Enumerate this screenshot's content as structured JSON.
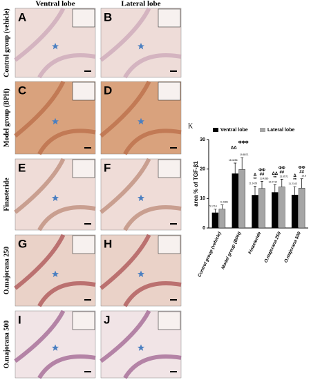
{
  "figure": {
    "columns": [
      "Ventral lobe",
      "Lateral lobe"
    ],
    "rows": [
      "Control group (vehicle)",
      "Model group (BPH)",
      "Finasteride",
      "O.majorana 250",
      "O.majorana 500"
    ],
    "panels": [
      "A",
      "B",
      "C",
      "D",
      "E",
      "F",
      "G",
      "H",
      "I",
      "J"
    ]
  },
  "chart_data": {
    "type": "bar",
    "panel_label": "K",
    "y_label": "area % of TGF-β1",
    "categories": [
      "Control group (vehicle)",
      "Model group (BPH)",
      "Finasteride",
      "O.majorana 250",
      "O.majorana 500"
    ],
    "series": [
      {
        "name": "Ventral lobe",
        "color": "#000000",
        "values": [
          5.1714,
          18.4286,
          11.1429,
          12.0714,
          11.2143
        ],
        "errors": [
          1.2,
          3.6,
          3.0,
          2.6,
          2.8
        ]
      },
      {
        "name": "Lateral lobe",
        "color": "#a6a6a6",
        "values": [
          6.4286,
          19.8571,
          13.4286,
          13.9571,
          13.5
        ],
        "errors": [
          1.4,
          4.0,
          2.4,
          2.6,
          3.2
        ]
      }
    ],
    "annotations": [
      "ΔΔ",
      "ΦΦΦ",
      "**",
      "Δ",
      "ΦΦ",
      "##",
      "**",
      "ΔΔ",
      "ΦΦ",
      "##",
      "**",
      "Δ",
      "ΦΦ",
      "##"
    ],
    "ylim": [
      0,
      30
    ],
    "yticks": [
      0,
      10,
      20,
      30
    ],
    "legend": "top"
  }
}
